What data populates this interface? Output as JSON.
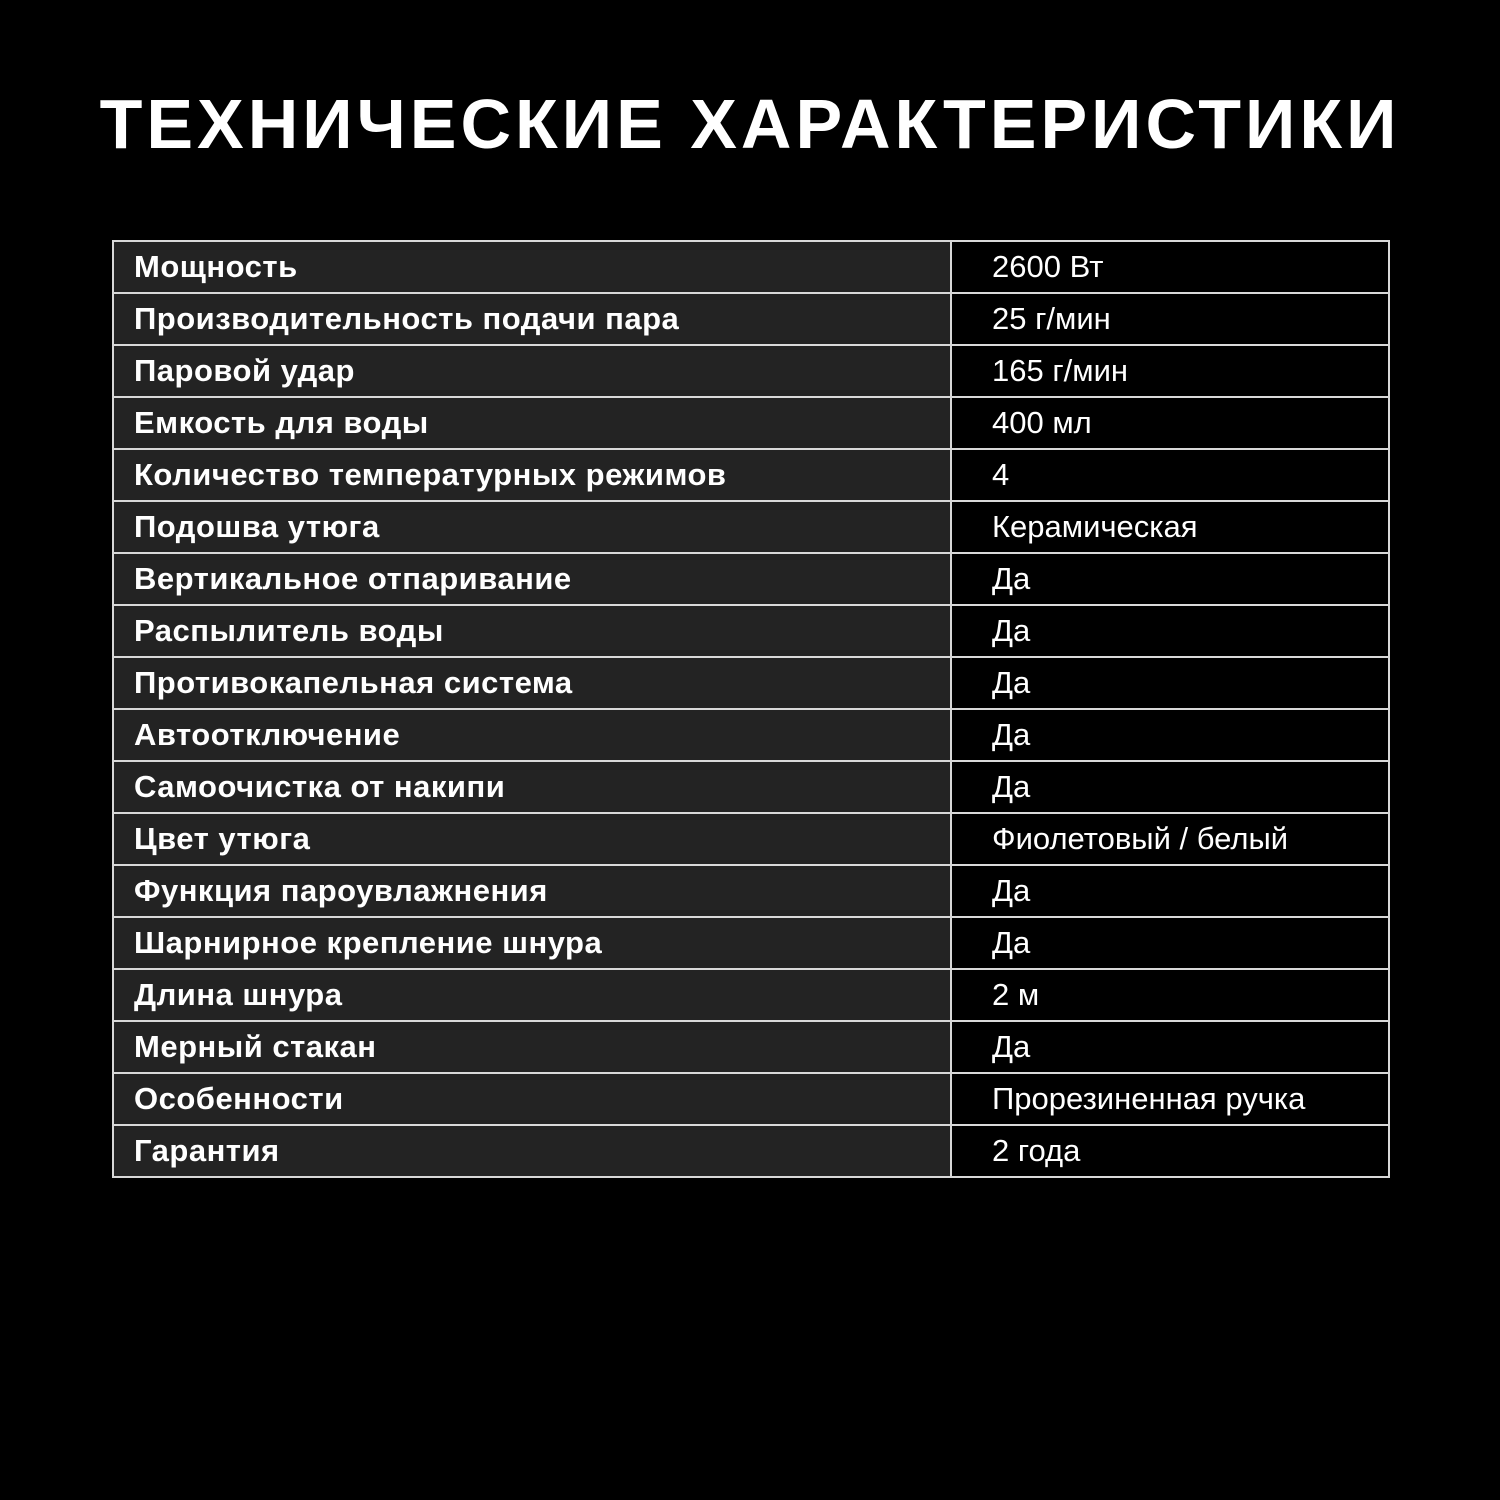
{
  "title": "ТЕХНИЧЕСКИЕ ХАРАКТЕРИСТИКИ",
  "colors": {
    "background": "#000000",
    "label_cell": "#232323",
    "border": "#d8d8d8",
    "text": "#ffffff"
  },
  "specs": [
    {
      "label": "Мощность",
      "value": "2600 Вт"
    },
    {
      "label": "Производительность подачи пара",
      "value": "25 г/мин"
    },
    {
      "label": "Паровой удар",
      "value": "165 г/мин"
    },
    {
      "label": "Емкость для воды",
      "value": "400 мл"
    },
    {
      "label": "Количество температурных режимов",
      "value": "4"
    },
    {
      "label": "Подошва утюга",
      "value": "Керамическая"
    },
    {
      "label": "Вертикальное отпаривание",
      "value": "Да"
    },
    {
      "label": "Распылитель воды",
      "value": "Да"
    },
    {
      "label": "Противокапельная система",
      "value": "Да"
    },
    {
      "label": "Автоотключение",
      "value": "Да"
    },
    {
      "label": "Самоочистка от накипи",
      "value": "Да"
    },
    {
      "label": "Цвет утюга",
      "value": "Фиолетовый / белый"
    },
    {
      "label": "Функция пароувлажнения",
      "value": "Да"
    },
    {
      "label": "Шарнирное крепление шнура",
      "value": "Да"
    },
    {
      "label": "Длина шнура",
      "value": "2 м"
    },
    {
      "label": "Мерный стакан",
      "value": "Да"
    },
    {
      "label": "Особенности",
      "value": "Прорезиненная ручка"
    },
    {
      "label": "Гарантия",
      "value": "2 года"
    }
  ]
}
